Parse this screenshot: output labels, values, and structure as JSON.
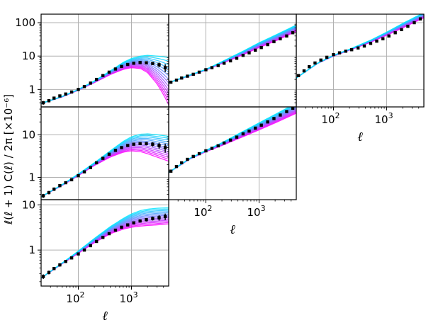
{
  "figure": {
    "ylabel": "ℓ(ℓ + 1) C(ℓ) / 2π [×10⁻⁶]",
    "xlabel": "ℓ",
    "colors": {
      "spine": "#000000",
      "grid": "#b0b0b0",
      "model_low": "#ff00ff",
      "model_high": "#00e5ff",
      "data": "#000000"
    }
  },
  "chart_data": [
    {
      "type": "line",
      "panel": "row1-col1",
      "xscale": "log",
      "yscale": "log",
      "xlim": [
        20,
        5000
      ],
      "ylim": [
        0.3,
        180
      ],
      "yticks": [
        {
          "v": 1,
          "label": "1"
        },
        {
          "v": 10,
          "label": "10"
        },
        {
          "v": 100,
          "label": "100"
        }
      ],
      "xticks": [],
      "xlabel": "",
      "band": {
        "x": [
          20,
          50,
          100,
          200,
          400,
          700,
          1000,
          1500,
          2000,
          3000,
          4000,
          5000
        ],
        "low": [
          0.38,
          0.6,
          0.95,
          1.6,
          2.8,
          4.0,
          4.5,
          4.2,
          3.2,
          1.5,
          0.7,
          0.35
        ],
        "high": [
          0.38,
          0.62,
          1.0,
          1.8,
          3.6,
          6.5,
          8.5,
          10,
          10.5,
          10,
          9.5,
          9.0
        ]
      },
      "points": {
        "x": [
          22,
          28,
          35,
          45,
          58,
          75,
          100,
          130,
          170,
          220,
          290,
          380,
          500,
          650,
          850,
          1100,
          1450,
          1900,
          2500,
          3300,
          4300
        ],
        "y": [
          0.4,
          0.46,
          0.55,
          0.64,
          0.73,
          0.84,
          1.0,
          1.22,
          1.55,
          2.0,
          2.6,
          3.3,
          4.1,
          4.9,
          5.6,
          6.1,
          6.4,
          6.3,
          6.0,
          5.5,
          4.5
        ],
        "err": [
          0.05,
          0.05,
          0.05,
          0.05,
          0.05,
          0.05,
          0.06,
          0.07,
          0.08,
          0.1,
          0.12,
          0.15,
          0.2,
          0.25,
          0.3,
          0.35,
          0.4,
          0.5,
          0.6,
          0.9,
          1.2
        ]
      }
    },
    {
      "type": "line",
      "panel": "row1-col2",
      "xscale": "log",
      "yscale": "log",
      "xlim": [
        20,
        5000
      ],
      "ylim": [
        0.3,
        180
      ],
      "yticks": [],
      "xticks": [],
      "xlabel": "",
      "band": {
        "x": [
          20,
          50,
          100,
          200,
          500,
          1000,
          2000,
          5000
        ],
        "low": [
          1.6,
          2.6,
          3.8,
          6.0,
          11,
          18,
          28,
          55
        ],
        "high": [
          1.6,
          2.7,
          4.0,
          6.8,
          14,
          25,
          42,
          85
        ]
      },
      "points": {
        "x": [
          22,
          28,
          35,
          45,
          58,
          75,
          100,
          130,
          170,
          220,
          290,
          380,
          500,
          650,
          850,
          1100,
          1450,
          1900,
          2500,
          3300,
          4300
        ],
        "y": [
          1.65,
          1.9,
          2.2,
          2.5,
          2.85,
          3.3,
          3.9,
          4.5,
          5.2,
          6.1,
          7.2,
          8.6,
          10.5,
          12.5,
          15,
          18,
          22,
          27,
          33,
          40,
          50
        ],
        "err": [
          0.1,
          0.1,
          0.1,
          0.1,
          0.12,
          0.13,
          0.15,
          0.17,
          0.2,
          0.2,
          0.25,
          0.3,
          0.35,
          0.4,
          0.5,
          0.6,
          0.8,
          1.0,
          1.3,
          1.8,
          2.5
        ]
      }
    },
    {
      "type": "line",
      "panel": "row1-col3",
      "xscale": "log",
      "yscale": "log",
      "xlim": [
        20,
        5000
      ],
      "ylim": [
        0.3,
        180
      ],
      "yticks": [],
      "xticks": [
        {
          "v": 100,
          "base": "10",
          "exp": "2"
        },
        {
          "v": 1000,
          "base": "10",
          "exp": "3"
        }
      ],
      "xlabel": "ℓ",
      "band": {
        "x": [
          20,
          50,
          100,
          200,
          500,
          1000,
          2000,
          5000
        ],
        "low": [
          2.2,
          6.0,
          10,
          15,
          26,
          42,
          70,
          140
        ],
        "high": [
          2.2,
          6.1,
          10.5,
          16,
          30,
          52,
          95,
          200
        ]
      },
      "points": {
        "x": [
          22,
          28,
          35,
          45,
          58,
          75,
          100,
          130,
          170,
          220,
          290,
          380,
          500,
          650,
          850,
          1100,
          1450,
          1900,
          2500,
          3300,
          4300
        ],
        "y": [
          2.6,
          3.6,
          4.8,
          6.2,
          7.6,
          9.2,
          11,
          12.5,
          14,
          15.5,
          17.5,
          20,
          24,
          28,
          33,
          40,
          50,
          62,
          78,
          100,
          130
        ],
        "err": [
          0.15,
          0.2,
          0.25,
          0.3,
          0.35,
          0.4,
          0.5,
          0.5,
          0.6,
          0.6,
          0.7,
          0.8,
          1.0,
          1.2,
          1.5,
          1.8,
          2.2,
          2.8,
          3.5,
          5,
          7
        ]
      }
    },
    {
      "type": "line",
      "panel": "row2-col1",
      "xscale": "log",
      "yscale": "log",
      "xlim": [
        20,
        5000
      ],
      "ylim": [
        0.3,
        45
      ],
      "yticks": [
        {
          "v": 1,
          "label": "1"
        },
        {
          "v": 10,
          "label": "10"
        }
      ],
      "xticks": [],
      "xlabel": "",
      "band": {
        "x": [
          20,
          50,
          100,
          200,
          400,
          700,
          1000,
          1500,
          2000,
          3000,
          5000
        ],
        "low": [
          0.35,
          0.65,
          1.1,
          1.9,
          3.0,
          3.9,
          4.2,
          4.0,
          3.6,
          3.0,
          2.4
        ],
        "high": [
          0.35,
          0.68,
          1.2,
          2.2,
          4.2,
          7.0,
          9.0,
          10.3,
          10.5,
          10,
          9.2
        ]
      },
      "points": {
        "x": [
          22,
          28,
          35,
          45,
          58,
          75,
          100,
          130,
          170,
          220,
          290,
          380,
          500,
          650,
          850,
          1100,
          1450,
          1900,
          2500,
          3300,
          4300
        ],
        "y": [
          0.37,
          0.44,
          0.53,
          0.64,
          0.75,
          0.88,
          1.1,
          1.35,
          1.7,
          2.2,
          2.8,
          3.5,
          4.3,
          5.0,
          5.6,
          6.0,
          6.2,
          6.2,
          6.0,
          5.6,
          5.0
        ],
        "err": [
          0.04,
          0.04,
          0.05,
          0.05,
          0.05,
          0.06,
          0.07,
          0.08,
          0.09,
          0.1,
          0.12,
          0.15,
          0.2,
          0.25,
          0.3,
          0.35,
          0.45,
          0.55,
          0.7,
          0.9,
          1.2
        ]
      }
    },
    {
      "type": "line",
      "panel": "row2-col2",
      "xscale": "log",
      "yscale": "log",
      "xlim": [
        20,
        5000
      ],
      "ylim": [
        0.3,
        45
      ],
      "yticks": [],
      "xticks": [
        {
          "v": 100,
          "base": "10",
          "exp": "2"
        },
        {
          "v": 1000,
          "base": "10",
          "exp": "3"
        }
      ],
      "xlabel": "ℓ",
      "band": {
        "x": [
          20,
          50,
          100,
          200,
          500,
          1000,
          2000,
          5000
        ],
        "low": [
          1.3,
          2.7,
          4.0,
          5.6,
          9.0,
          13,
          19,
          32
        ],
        "high": [
          1.3,
          2.8,
          4.3,
          6.5,
          12,
          19,
          30,
          55
        ]
      },
      "points": {
        "x": [
          22,
          28,
          35,
          45,
          58,
          75,
          100,
          130,
          170,
          220,
          290,
          380,
          500,
          650,
          850,
          1100,
          1450,
          1900,
          2500,
          3300,
          4300
        ],
        "y": [
          1.4,
          1.8,
          2.2,
          2.65,
          3.1,
          3.6,
          4.2,
          4.8,
          5.5,
          6.4,
          7.5,
          8.8,
          10.5,
          12.2,
          14.3,
          16.8,
          20,
          24,
          29,
          35,
          42
        ],
        "err": [
          0.08,
          0.08,
          0.1,
          0.1,
          0.12,
          0.13,
          0.15,
          0.17,
          0.2,
          0.2,
          0.25,
          0.3,
          0.35,
          0.4,
          0.5,
          0.6,
          0.8,
          1.0,
          1.3,
          1.8,
          2.5
        ]
      }
    },
    {
      "type": "line",
      "panel": "row3-col1",
      "xscale": "log",
      "yscale": "log",
      "xlim": [
        20,
        5000
      ],
      "ylim": [
        0.16,
        13
      ],
      "yticks": [
        {
          "v": 1,
          "label": "1"
        },
        {
          "v": 10,
          "label": "10"
        }
      ],
      "xticks": [
        {
          "v": 100,
          "base": "10",
          "exp": "2"
        },
        {
          "v": 1000,
          "base": "10",
          "exp": "3"
        }
      ],
      "xlabel": "ℓ",
      "band": {
        "x": [
          20,
          50,
          100,
          200,
          400,
          700,
          1000,
          1500,
          2000,
          3000,
          5000
        ],
        "low": [
          0.24,
          0.5,
          0.85,
          1.45,
          2.3,
          2.9,
          3.2,
          3.4,
          3.5,
          3.6,
          3.8
        ],
        "high": [
          0.24,
          0.52,
          0.95,
          1.8,
          3.3,
          5.0,
          6.3,
          7.5,
          8.0,
          8.4,
          8.6
        ]
      },
      "points": {
        "x": [
          22,
          28,
          35,
          45,
          58,
          75,
          100,
          130,
          170,
          220,
          290,
          380,
          500,
          650,
          850,
          1100,
          1450,
          1900,
          2500,
          3300,
          4300
        ],
        "y": [
          0.26,
          0.32,
          0.39,
          0.47,
          0.56,
          0.67,
          0.82,
          1.0,
          1.25,
          1.55,
          1.9,
          2.3,
          2.75,
          3.2,
          3.6,
          4.0,
          4.4,
          4.7,
          5.0,
          5.2,
          5.5
        ],
        "err": [
          0.03,
          0.03,
          0.03,
          0.04,
          0.04,
          0.04,
          0.05,
          0.06,
          0.07,
          0.08,
          0.1,
          0.12,
          0.15,
          0.18,
          0.22,
          0.27,
          0.33,
          0.4,
          0.5,
          0.7,
          0.9
        ]
      }
    }
  ]
}
